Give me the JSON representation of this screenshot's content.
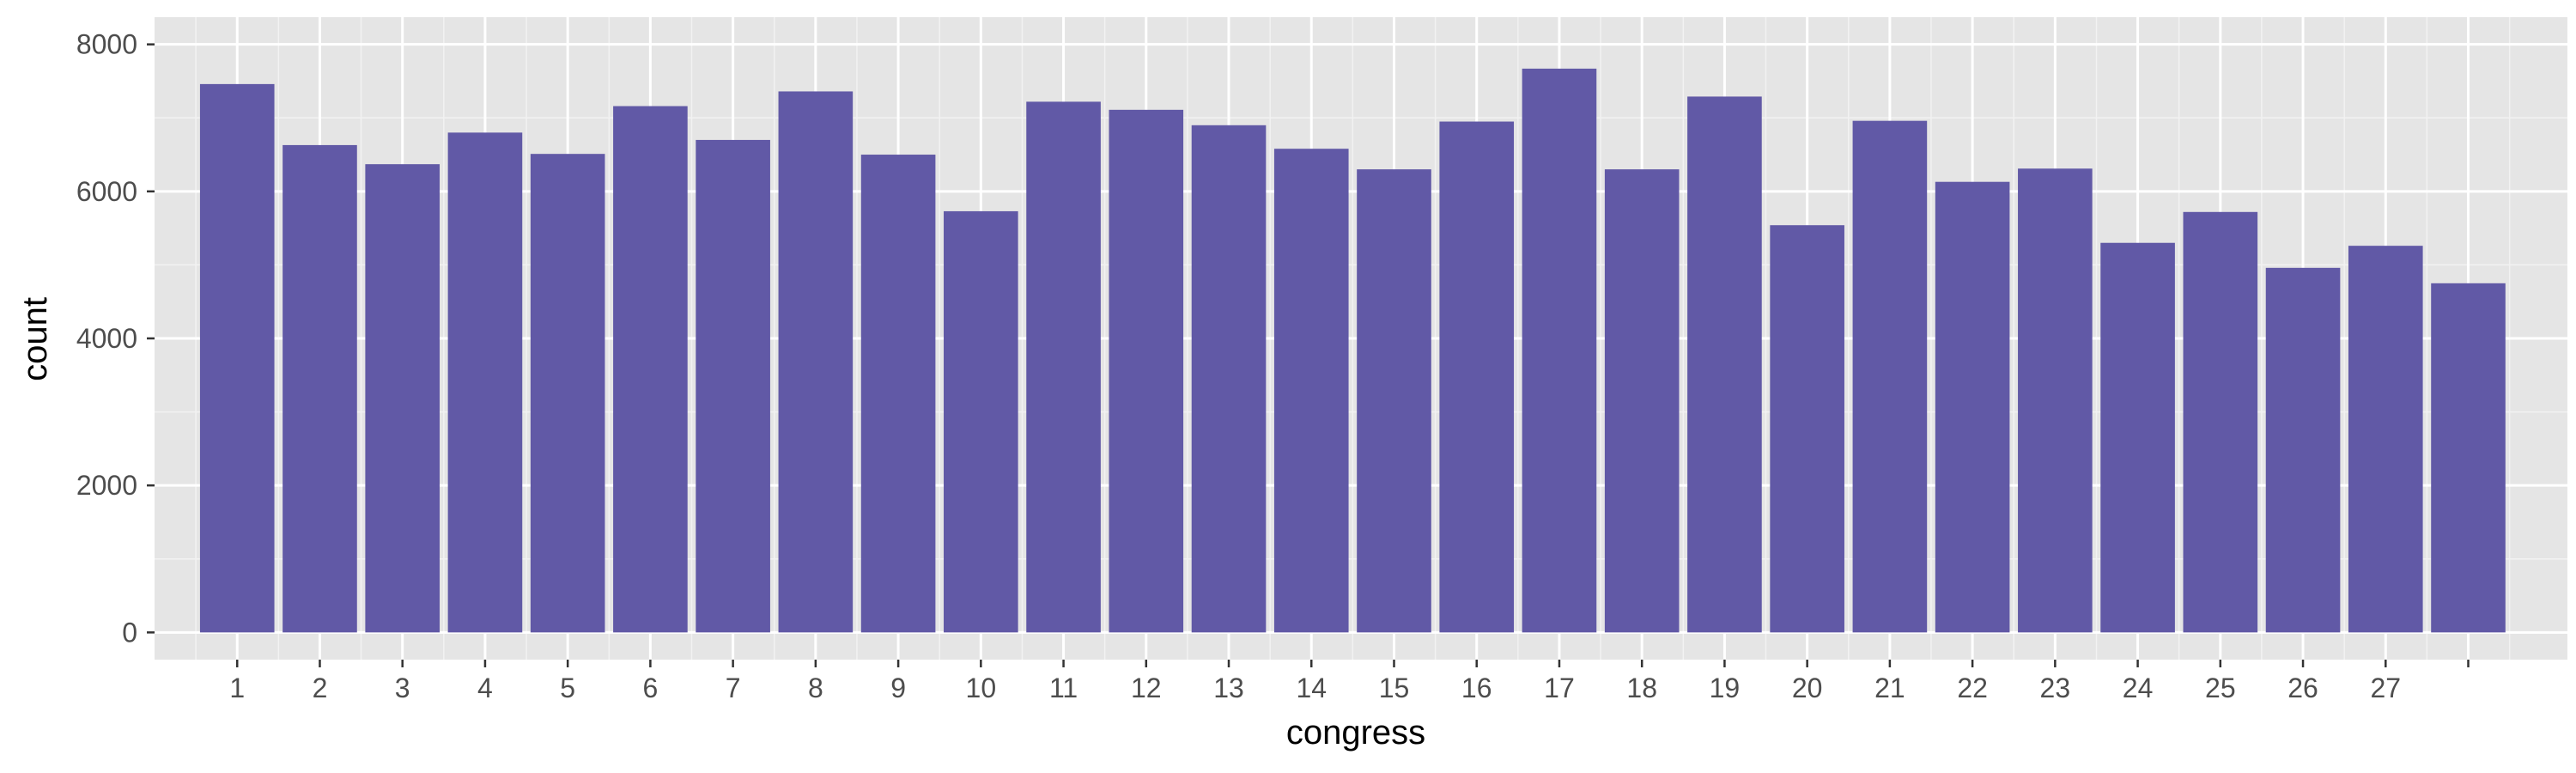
{
  "chart_data": {
    "type": "bar",
    "title": "",
    "xlabel": "congress",
    "ylabel": "count",
    "categories": [
      "1",
      "2",
      "3",
      "4",
      "5",
      "6",
      "7",
      "8",
      "9",
      "10",
      "11",
      "12",
      "13",
      "14",
      "15",
      "16",
      "17",
      "18",
      "19",
      "20",
      "21",
      "22",
      "23",
      "24",
      "25",
      "26",
      "27",
      ""
    ],
    "values": [
      7460,
      6630,
      6370,
      6800,
      6510,
      7160,
      6700,
      7360,
      6500,
      5730,
      7220,
      7110,
      6900,
      6580,
      6300,
      6950,
      7670,
      6300,
      7290,
      5540,
      6960,
      6130,
      6310,
      5300,
      5720,
      4960,
      5260,
      4750
    ],
    "x_tick_labels": [
      "1",
      "2",
      "3",
      "4",
      "5",
      "6",
      "7",
      "8",
      "9",
      "10",
      "11",
      "12",
      "13",
      "14",
      "15",
      "16",
      "17",
      "18",
      "19",
      "20",
      "21",
      "22",
      "23",
      "24",
      "25",
      "26",
      "27"
    ],
    "y_ticks": [
      0,
      2000,
      4000,
      6000,
      8000
    ],
    "ylim": [
      -370,
      8370
    ],
    "grid": true,
    "legend": "none",
    "colors": {
      "bar": "#6159a6",
      "panel": "#e5e5e5",
      "grid_major": "#ffffff",
      "grid_minor": "#f2f2f2",
      "tick": "#333333"
    }
  }
}
